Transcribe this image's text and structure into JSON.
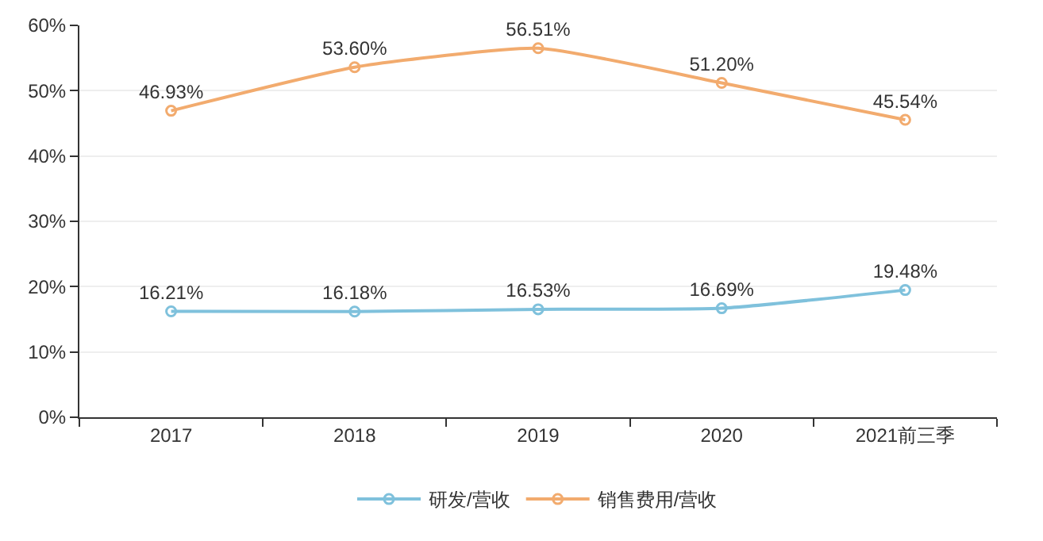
{
  "chart_data": {
    "type": "line",
    "categories": [
      "2017",
      "2018",
      "2019",
      "2020",
      "2021前三季"
    ],
    "series": [
      {
        "name": "研发/营收",
        "color": "#7fc1dc",
        "values": [
          16.21,
          16.18,
          16.53,
          16.69,
          19.48
        ],
        "value_labels": [
          "16.21%",
          "16.18%",
          "16.53%",
          "16.69%",
          "19.48%"
        ]
      },
      {
        "name": "销售费用/营收",
        "color": "#f2ab6e",
        "values": [
          46.93,
          53.6,
          56.51,
          51.2,
          45.54
        ],
        "value_labels": [
          "46.93%",
          "53.60%",
          "56.51%",
          "51.20%",
          "45.54%"
        ]
      }
    ],
    "ylim": [
      0,
      60
    ],
    "yticks": [
      {
        "value": 0,
        "label": "0%"
      },
      {
        "value": 10,
        "label": "10%"
      },
      {
        "value": 20,
        "label": "20%"
      },
      {
        "value": 30,
        "label": "30%"
      },
      {
        "value": 40,
        "label": "40%"
      },
      {
        "value": 50,
        "label": "50%"
      },
      {
        "value": 60,
        "label": "60%"
      }
    ],
    "grid": "y",
    "legend": "bottom",
    "marker": "circle",
    "line_style": "solid"
  }
}
